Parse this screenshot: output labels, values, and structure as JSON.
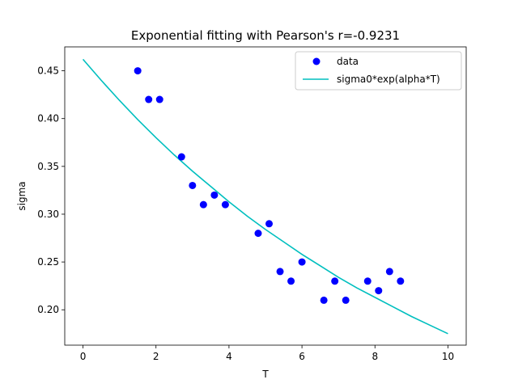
{
  "chart_data": {
    "type": "scatter",
    "title": "Exponential fitting with Pearson's r=-0.9231",
    "xlabel": "T",
    "ylabel": "sigma",
    "xlim": [
      -0.5,
      10.5
    ],
    "ylim": [
      0.163,
      0.475
    ],
    "xticks": [
      0,
      2,
      4,
      6,
      8,
      10
    ],
    "yticks": [
      0.2,
      0.25,
      0.3,
      0.35,
      0.4,
      0.45
    ],
    "xtick_labels": [
      "0",
      "2",
      "4",
      "6",
      "8",
      "10"
    ],
    "ytick_labels": [
      "0.20",
      "0.25",
      "0.30",
      "0.35",
      "0.40",
      "0.45"
    ],
    "grid": false,
    "legend_position": "top-right",
    "series": [
      {
        "name": "data",
        "kind": "scatter",
        "color": "#0000ff",
        "points": [
          {
            "x": 1.5,
            "y": 0.45
          },
          {
            "x": 1.8,
            "y": 0.42
          },
          {
            "x": 2.1,
            "y": 0.42
          },
          {
            "x": 2.7,
            "y": 0.36
          },
          {
            "x": 3.0,
            "y": 0.33
          },
          {
            "x": 3.3,
            "y": 0.31
          },
          {
            "x": 3.6,
            "y": 0.32
          },
          {
            "x": 3.9,
            "y": 0.31
          },
          {
            "x": 4.8,
            "y": 0.28
          },
          {
            "x": 5.1,
            "y": 0.29
          },
          {
            "x": 5.4,
            "y": 0.24
          },
          {
            "x": 5.7,
            "y": 0.23
          },
          {
            "x": 6.0,
            "y": 0.25
          },
          {
            "x": 6.6,
            "y": 0.21
          },
          {
            "x": 6.9,
            "y": 0.23
          },
          {
            "x": 7.2,
            "y": 0.21
          },
          {
            "x": 7.8,
            "y": 0.23
          },
          {
            "x": 8.1,
            "y": 0.22
          },
          {
            "x": 8.4,
            "y": 0.24
          },
          {
            "x": 8.7,
            "y": 0.23
          }
        ]
      },
      {
        "name": "sigma0*exp(alpha*T)",
        "kind": "line",
        "color": "#00bfbf",
        "points": [
          {
            "x": 0.0,
            "y": 0.462
          },
          {
            "x": 0.5,
            "y": 0.44
          },
          {
            "x": 1.0,
            "y": 0.419
          },
          {
            "x": 1.5,
            "y": 0.399
          },
          {
            "x": 2.0,
            "y": 0.38
          },
          {
            "x": 2.5,
            "y": 0.362
          },
          {
            "x": 3.0,
            "y": 0.345
          },
          {
            "x": 3.5,
            "y": 0.329
          },
          {
            "x": 4.0,
            "y": 0.313
          },
          {
            "x": 4.5,
            "y": 0.298
          },
          {
            "x": 5.0,
            "y": 0.284
          },
          {
            "x": 5.5,
            "y": 0.271
          },
          {
            "x": 6.0,
            "y": 0.258
          },
          {
            "x": 6.5,
            "y": 0.246
          },
          {
            "x": 7.0,
            "y": 0.234
          },
          {
            "x": 7.5,
            "y": 0.223
          },
          {
            "x": 8.0,
            "y": 0.213
          },
          {
            "x": 8.5,
            "y": 0.203
          },
          {
            "x": 9.0,
            "y": 0.193
          },
          {
            "x": 9.5,
            "y": 0.184
          },
          {
            "x": 10.0,
            "y": 0.175
          }
        ]
      }
    ]
  }
}
